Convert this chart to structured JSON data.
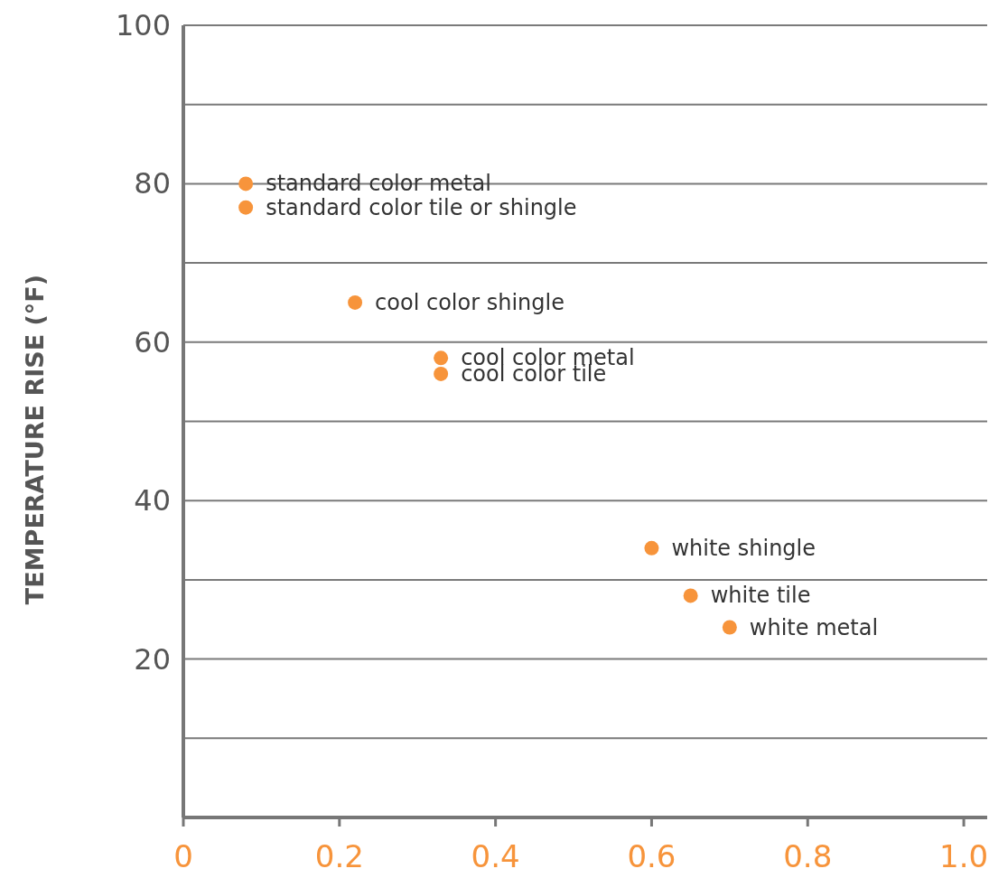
{
  "chart_data": {
    "type": "scatter",
    "ylabel": "TEMPERATURE RISE (°F)",
    "x": [
      0.08,
      0.08,
      0.22,
      0.33,
      0.33,
      0.6,
      0.65,
      0.7
    ],
    "series": [
      {
        "color": "#f7943b",
        "values": [
          80,
          77,
          65,
          58,
          56,
          34,
          28,
          24
        ]
      }
    ],
    "annotations": [
      {
        "text": "standard color metal",
        "x": 0.08,
        "y": 80
      },
      {
        "text": "standard color tile or shingle",
        "x": 0.08,
        "y": 77
      },
      {
        "text": "cool color shingle",
        "x": 0.22,
        "y": 65
      },
      {
        "text": "cool color metal",
        "x": 0.33,
        "y": 58
      },
      {
        "text": "cool color tile",
        "x": 0.33,
        "y": 56
      },
      {
        "text": "white shingle",
        "x": 0.6,
        "y": 34
      },
      {
        "text": "white tile",
        "x": 0.65,
        "y": 28
      },
      {
        "text": "white metal",
        "x": 0.7,
        "y": 24
      }
    ],
    "xlim": [
      0,
      1.03
    ],
    "ylim": [
      0,
      100
    ],
    "xticks": [
      0,
      0.2,
      0.4,
      0.6,
      0.8,
      {
        "value": 1.0,
        "label": "1.0"
      }
    ],
    "yticks": [
      {
        "value": 10,
        "label": null
      },
      20,
      {
        "value": 30,
        "label": null
      },
      40,
      {
        "value": 50,
        "label": null
      },
      60,
      {
        "value": 70,
        "label": null
      },
      80,
      {
        "value": 90,
        "label": null
      },
      100
    ],
    "grid": "y",
    "marker": "circle"
  }
}
